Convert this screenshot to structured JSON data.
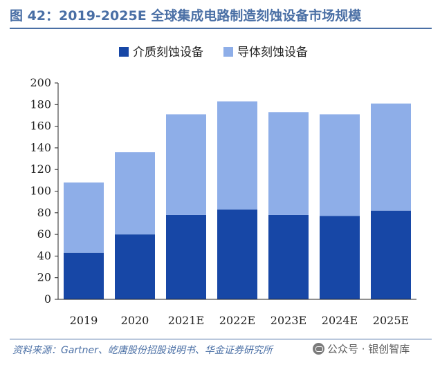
{
  "header": {
    "title": "图 42：2019-2025E 全球集成电路制造刻蚀设备市场规模"
  },
  "footer": {
    "source": "资料来源：Gartner、屹唐股份招股说明书、华金证券研究所",
    "watermark": "公众号 · 银创智库"
  },
  "chart_data": {
    "type": "bar",
    "stacked": true,
    "title": "",
    "xlabel": "",
    "ylabel": "",
    "categories": [
      "2019",
      "2020",
      "2021E",
      "2022E",
      "2023E",
      "2024E",
      "2025E"
    ],
    "series": [
      {
        "name": "介质刻蚀设备",
        "color": "#1747a6",
        "values": [
          43,
          60,
          78,
          83,
          78,
          77,
          82
        ]
      },
      {
        "name": "导体刻蚀设备",
        "color": "#8eaee8",
        "values": [
          65,
          76,
          93,
          100,
          95,
          94,
          99
        ]
      }
    ],
    "ylim": [
      0,
      200
    ],
    "yticks": [
      0,
      20,
      40,
      60,
      80,
      100,
      120,
      140,
      160,
      180,
      200
    ],
    "grid": false,
    "legend_position": "top-center"
  }
}
